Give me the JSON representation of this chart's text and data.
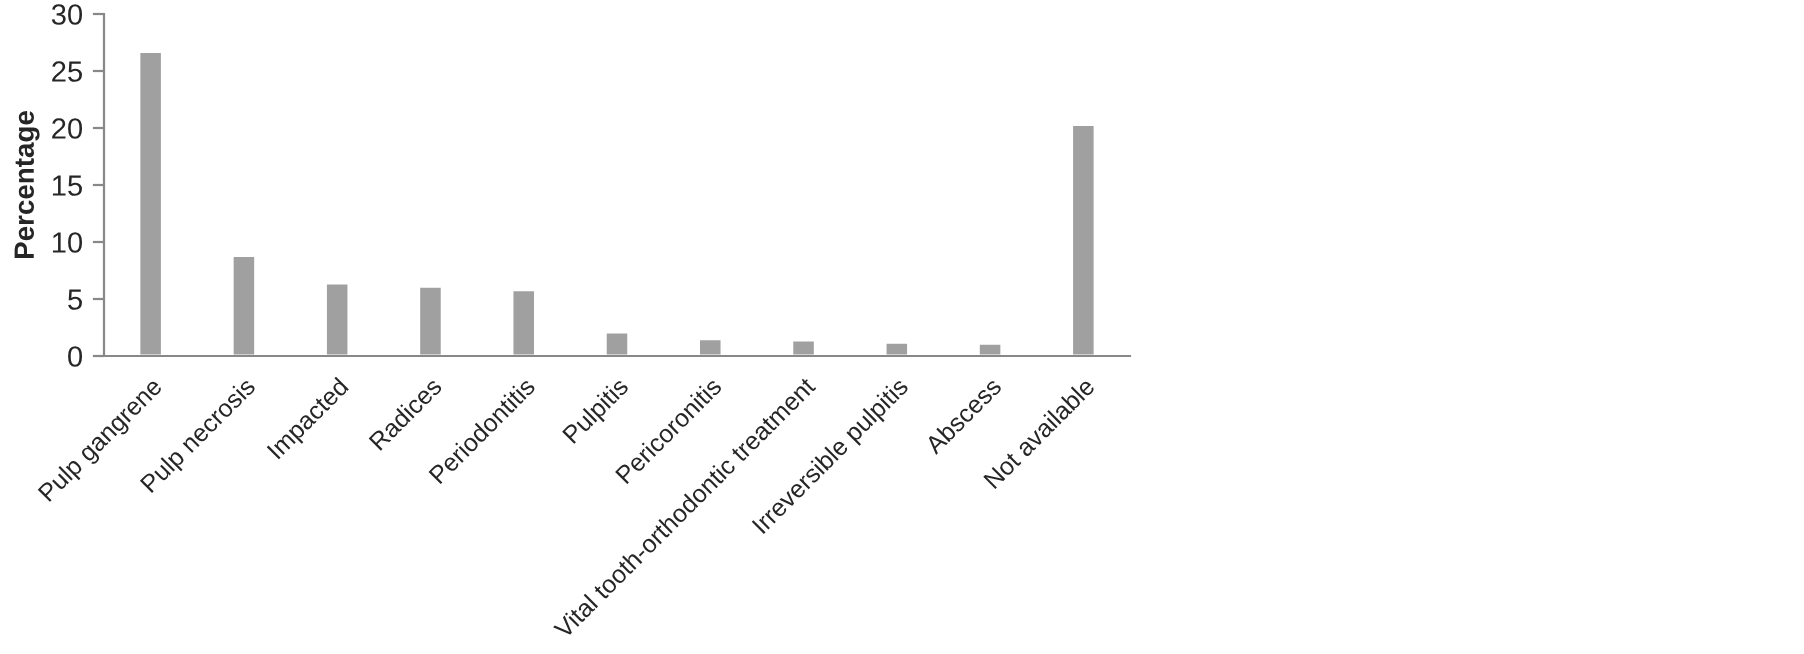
{
  "chart_data": {
    "type": "bar",
    "ylabel": "Percentage",
    "categories": [
      "Pulp gangrene",
      "Pulp necrosis",
      "Impacted",
      "Radices",
      "Periodontitis",
      "Pulpitis",
      "Pericoronitis",
      "Vital tooth-orthodontic treatment",
      "Irreversible pulpitis",
      "Abscess",
      "Not available"
    ],
    "values": [
      26.7,
      8.8,
      6.4,
      6.1,
      5.8,
      2.1,
      1.5,
      1.4,
      1.2,
      1.1,
      20.3
    ],
    "color": "#a0a0a0",
    "ylim": [
      0,
      30
    ],
    "yticks": [
      0,
      5,
      10,
      15,
      20,
      25,
      30
    ],
    "grid": false,
    "legend": false
  }
}
